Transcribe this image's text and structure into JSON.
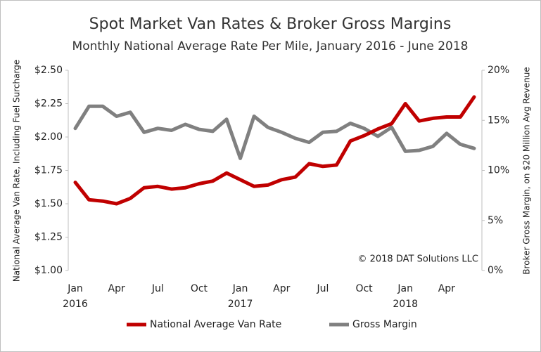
{
  "chart_data": {
    "type": "line",
    "title": "Spot Market Van Rates & Broker Gross Margins",
    "subtitle": "Monthly National Average Rate Per Mile, January 2016 - June 2018",
    "y_label": "National Average Van Rate, Including Fuel Surcharge",
    "y2_label": "Broker Gross Margin, on $20 Million Avg Revenue",
    "annotation": "© 2018 DAT Solutions LLC",
    "categories": [
      "Jan",
      null,
      null,
      "Apr",
      null,
      null,
      "Jul",
      null,
      null,
      "Oct",
      null,
      null,
      "Jan",
      null,
      null,
      "Apr",
      null,
      null,
      "Jul",
      null,
      null,
      "Oct",
      null,
      null,
      "Jan",
      null,
      null,
      "Apr",
      null,
      null
    ],
    "x_group_labels": [
      "2016",
      "2017",
      "2018"
    ],
    "series": [
      {
        "name": "National Average Van Rate",
        "color": "#c00000",
        "axis": "y",
        "values": [
          1.66,
          1.53,
          1.52,
          1.5,
          1.54,
          1.62,
          1.63,
          1.61,
          1.62,
          1.65,
          1.67,
          1.73,
          1.68,
          1.63,
          1.64,
          1.68,
          1.7,
          1.8,
          1.78,
          1.79,
          1.97,
          2.01,
          2.06,
          2.1,
          2.25,
          2.12,
          2.14,
          2.15,
          2.15,
          2.3
        ]
      },
      {
        "name": "Gross Margin",
        "color": "#808080",
        "axis": "y2",
        "values": [
          14.2,
          16.4,
          16.4,
          15.4,
          15.8,
          13.8,
          14.2,
          14.0,
          14.6,
          14.1,
          13.9,
          15.1,
          11.2,
          15.4,
          14.3,
          13.8,
          13.2,
          12.8,
          13.8,
          13.9,
          14.7,
          14.2,
          13.4,
          14.3,
          11.9,
          12.0,
          12.4,
          13.7,
          12.6,
          12.2
        ]
      }
    ],
    "ylim": [
      1.0,
      2.5
    ],
    "yticks": [
      {
        "value": 1.0,
        "label": "$1.00"
      },
      {
        "value": 1.25,
        "label": "$1.25"
      },
      {
        "value": 1.5,
        "label": "$1.50"
      },
      {
        "value": 1.75,
        "label": "$1.75"
      },
      {
        "value": 2.0,
        "label": "$2.00"
      },
      {
        "value": 2.25,
        "label": "$2.25"
      },
      {
        "value": 2.5,
        "label": "$2.50"
      }
    ],
    "y2lim": [
      0,
      20
    ],
    "y2ticks": [
      {
        "value": 0,
        "label": "0%"
      },
      {
        "value": 5,
        "label": "5%"
      },
      {
        "value": 10,
        "label": "10%"
      },
      {
        "value": 15,
        "label": "15%"
      },
      {
        "value": 20,
        "label": "20%"
      }
    ],
    "legend": "bottom"
  }
}
